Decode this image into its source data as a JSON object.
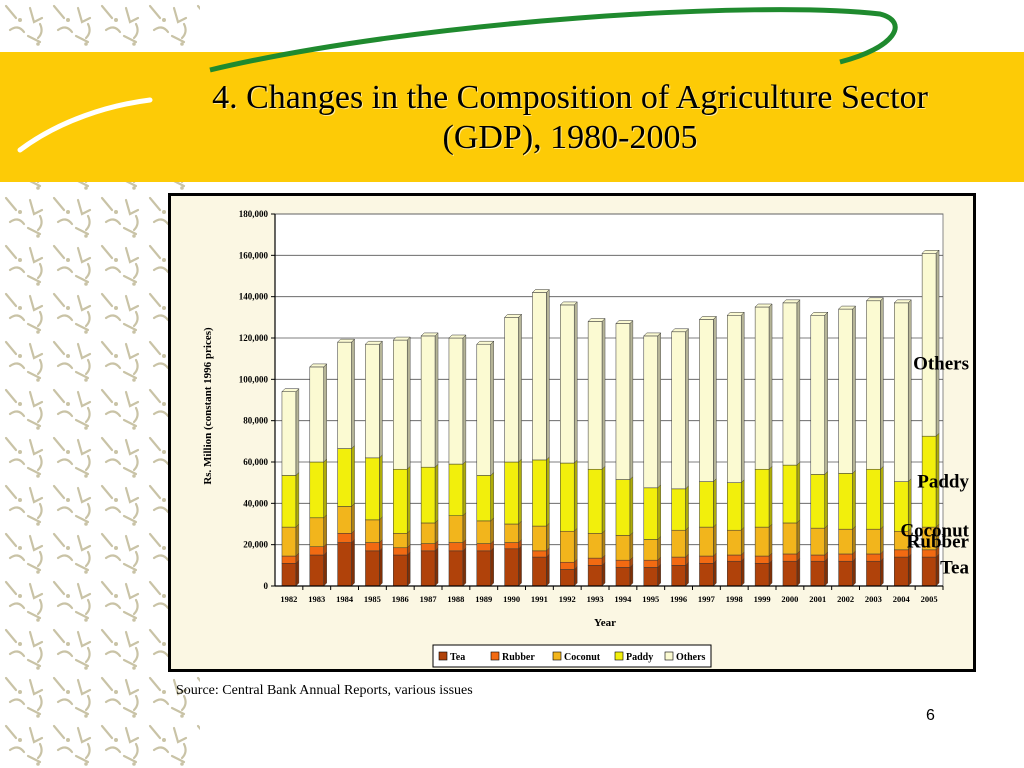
{
  "slide": {
    "title_line1": "4. Changes in the Composition of Agriculture Sector",
    "title_line2": "(GDP), 1980-2005",
    "source": "Source: Central Bank Annual Reports, various issues",
    "page_number": "6"
  },
  "colors": {
    "title_band": "#fdcb06",
    "swoosh": "#1f8a2e",
    "plot_bg": "#fbf7e3",
    "Tea": "#b0420a",
    "Rubber": "#f26a12",
    "Coconut": "#f2b51c",
    "Paddy": "#f2ef0c",
    "Others": "#fbfad2"
  },
  "chart_data": {
    "type": "bar",
    "stacked": true,
    "title": "",
    "xlabel": "Year",
    "ylabel": "Rs. Million (constant 1996 prices)",
    "ylim": [
      0,
      180000
    ],
    "yticks": [
      "0",
      "20,000",
      "40,000",
      "60,000",
      "80,000",
      "100,000",
      "120,000",
      "140,000",
      "160,000",
      "180,000"
    ],
    "grid": true,
    "legend_position": "bottom",
    "categories": [
      "1982",
      "1983",
      "1984",
      "1985",
      "1986",
      "1987",
      "1988",
      "1989",
      "1990",
      "1991",
      "1992",
      "1993",
      "1994",
      "1995",
      "1996",
      "1997",
      "1998",
      "1999",
      "2000",
      "2001",
      "2002",
      "2003",
      "2004",
      "2005"
    ],
    "series": [
      {
        "name": "Tea",
        "values": [
          11000,
          15000,
          21000,
          17000,
          15000,
          17000,
          17000,
          17000,
          18000,
          14000,
          8000,
          10000,
          9000,
          9000,
          10000,
          11000,
          12000,
          11000,
          12000,
          12000,
          12000,
          12000,
          14000,
          14000
        ]
      },
      {
        "name": "Rubber",
        "values": [
          3500,
          4000,
          4500,
          4000,
          3500,
          3500,
          4000,
          3500,
          3000,
          3000,
          3500,
          3500,
          3500,
          3500,
          4000,
          3500,
          3000,
          3500,
          3500,
          3000,
          3500,
          3500,
          3500,
          3500
        ]
      },
      {
        "name": "Coconut",
        "values": [
          14000,
          14000,
          13000,
          11000,
          7000,
          10000,
          13000,
          11000,
          9000,
          12000,
          15000,
          12000,
          12000,
          10000,
          13000,
          14000,
          12000,
          14000,
          15000,
          13000,
          12000,
          12000,
          9000,
          11000
        ]
      },
      {
        "name": "Paddy",
        "values": [
          25000,
          27000,
          28000,
          30000,
          31000,
          27000,
          25000,
          22000,
          30000,
          32000,
          33000,
          31000,
          27000,
          25000,
          20000,
          22000,
          23000,
          28000,
          28000,
          26000,
          27000,
          29000,
          24000,
          44000
        ]
      },
      {
        "name": "Others",
        "values": [
          40500,
          46000,
          51500,
          55000,
          62500,
          63500,
          61000,
          63500,
          70000,
          81000,
          76500,
          71500,
          75500,
          73500,
          76000,
          78500,
          81000,
          78500,
          78500,
          77000,
          79500,
          81500,
          86500,
          88500
        ]
      }
    ],
    "annotations": [
      "Others",
      "Paddy",
      "Coconut",
      "Rubber",
      "Tea"
    ]
  }
}
